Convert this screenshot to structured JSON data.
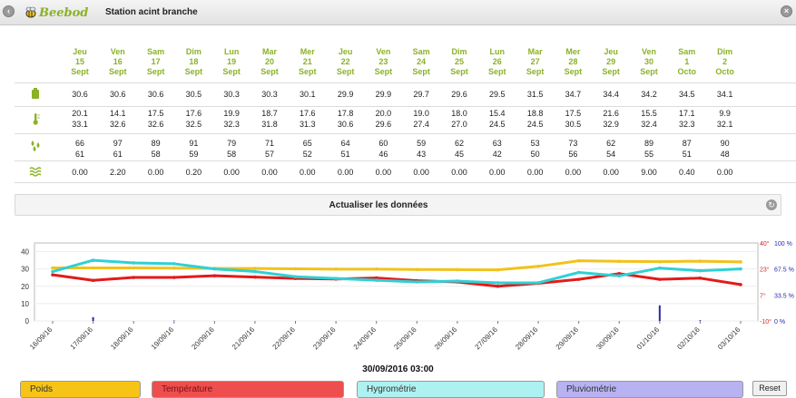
{
  "header": {
    "logo_text": "Beebod",
    "station_title": "Station acint branche"
  },
  "days": [
    {
      "d": "Jeu",
      "n": "15",
      "m": "Sept"
    },
    {
      "d": "Ven",
      "n": "16",
      "m": "Sept"
    },
    {
      "d": "Sam",
      "n": "17",
      "m": "Sept"
    },
    {
      "d": "Dim",
      "n": "18",
      "m": "Sept"
    },
    {
      "d": "Lun",
      "n": "19",
      "m": "Sept"
    },
    {
      "d": "Mar",
      "n": "20",
      "m": "Sept"
    },
    {
      "d": "Mer",
      "n": "21",
      "m": "Sept"
    },
    {
      "d": "Jeu",
      "n": "22",
      "m": "Sept"
    },
    {
      "d": "Ven",
      "n": "23",
      "m": "Sept"
    },
    {
      "d": "Sam",
      "n": "24",
      "m": "Sept"
    },
    {
      "d": "Dim",
      "n": "25",
      "m": "Sept"
    },
    {
      "d": "Lun",
      "n": "26",
      "m": "Sept"
    },
    {
      "d": "Mar",
      "n": "27",
      "m": "Sept"
    },
    {
      "d": "Mer",
      "n": "28",
      "m": "Sept"
    },
    {
      "d": "Jeu",
      "n": "29",
      "m": "Sept"
    },
    {
      "d": "Ven",
      "n": "30",
      "m": "Sept"
    },
    {
      "d": "Sam",
      "n": "1",
      "m": "Octo"
    },
    {
      "d": "Dim",
      "n": "2",
      "m": "Octo"
    }
  ],
  "rows": {
    "weight": [
      "30.6",
      "30.6",
      "30.6",
      "30.5",
      "30.3",
      "30.3",
      "30.1",
      "29.9",
      "29.9",
      "29.7",
      "29.6",
      "29.5",
      "31.5",
      "34.7",
      "34.4",
      "34.2",
      "34.5",
      "34.1"
    ],
    "temp_min": [
      "20.1",
      "14.1",
      "17.5",
      "17.6",
      "19.9",
      "18.7",
      "17.6",
      "17.8",
      "20.0",
      "19.0",
      "18.0",
      "15.4",
      "18.8",
      "17.5",
      "21.6",
      "15.5",
      "17.1",
      "9.9"
    ],
    "temp_max": [
      "33.1",
      "32.6",
      "32.6",
      "32.5",
      "32.3",
      "31.8",
      "31.3",
      "30.6",
      "29.6",
      "27.4",
      "27.0",
      "24.5",
      "24.5",
      "30.5",
      "32.9",
      "32.4",
      "32.3",
      "32.1"
    ],
    "hyg_max": [
      "66",
      "97",
      "89",
      "91",
      "79",
      "71",
      "65",
      "64",
      "60",
      "59",
      "62",
      "63",
      "53",
      "73",
      "62",
      "89",
      "87",
      "90"
    ],
    "hyg_min": [
      "61",
      "61",
      "58",
      "59",
      "58",
      "57",
      "52",
      "51",
      "46",
      "43",
      "45",
      "42",
      "50",
      "56",
      "54",
      "55",
      "51",
      "48"
    ],
    "rain": [
      "0.00",
      "2.20",
      "0.00",
      "0.20",
      "0.00",
      "0.00",
      "0.00",
      "0.00",
      "0.00",
      "0.00",
      "0.00",
      "0.00",
      "0.00",
      "0.00",
      "0.00",
      "9.00",
      "0.40",
      "0.00"
    ]
  },
  "icons": {
    "weight": "scale-icon",
    "temp": "thermometer-icon",
    "hygro": "droplets-icon",
    "rain": "rain-icon"
  },
  "refresh": {
    "label": "Actualiser les données"
  },
  "chart_data": {
    "type": "line",
    "x_ticks": [
      "16/09/16",
      "17/09/16",
      "18/09/16",
      "19/09/16",
      "20/09/16",
      "21/09/16",
      "22/09/16",
      "23/09/16",
      "24/09/16",
      "25/09/16",
      "26/09/16",
      "27/09/16",
      "28/09/16",
      "29/09/16",
      "30/09/16",
      "01/10/16",
      "02/10/16",
      "03/10/16"
    ],
    "y_left_ticks": [
      "0",
      "10",
      "20",
      "30",
      "40"
    ],
    "y_right_ticks": [
      {
        "temp": "40°",
        "hyg": "100 %"
      },
      {
        "temp": "23°",
        "hyg": "67.5 %"
      },
      {
        "temp": "7°",
        "hyg": "33.5 %"
      },
      {
        "temp": "-10°",
        "hyg": "0 %"
      }
    ],
    "ylim": [
      0,
      45
    ],
    "series": [
      {
        "name": "Poids",
        "color": "#f2c21a",
        "values": [
          30.6,
          30.6,
          30.6,
          30.5,
          30.3,
          30.3,
          30.1,
          29.9,
          29.9,
          29.7,
          29.6,
          29.5,
          31.5,
          34.7,
          34.4,
          34.2,
          34.5,
          34.1
        ]
      },
      {
        "name": "Température",
        "color": "#e31a1a",
        "values": [
          26.6,
          23.4,
          25.1,
          25.1,
          26.1,
          25.3,
          24.5,
          24.2,
          24.8,
          23.2,
          22.5,
          20.0,
          21.7,
          24.0,
          27.3,
          24.0,
          24.7,
          21.0
        ]
      },
      {
        "name": "Hygrométrie",
        "color": "#2ed1d5",
        "values": [
          28.5,
          35.0,
          33.5,
          33.0,
          30.0,
          28.5,
          25.5,
          24.5,
          23.5,
          22.5,
          23.0,
          22.0,
          22.0,
          28.0,
          26.0,
          30.5,
          29.0,
          30.0
        ]
      },
      {
        "name": "Pluviométrie",
        "color": "#2a2ab0",
        "values": [
          0.0,
          2.2,
          0.0,
          0.2,
          0.0,
          0.0,
          0.0,
          0.0,
          0.0,
          0.0,
          0.0,
          0.0,
          0.0,
          0.0,
          0.0,
          9.0,
          0.4,
          0.0
        ]
      }
    ]
  },
  "selected_date": "30/09/2016 03:00",
  "legend": {
    "poids": "Poids",
    "temperature": "Température",
    "hygrometrie": "Hygrométrie",
    "pluviometrie": "Pluviométrie"
  },
  "reset_label": "Reset",
  "colors": {
    "accent_green": "#8ab227",
    "poids": "#f6c417",
    "temperature": "#ef4e4e",
    "hygrometrie": "#aef1f1",
    "pluviometrie": "#b7b2f2"
  }
}
